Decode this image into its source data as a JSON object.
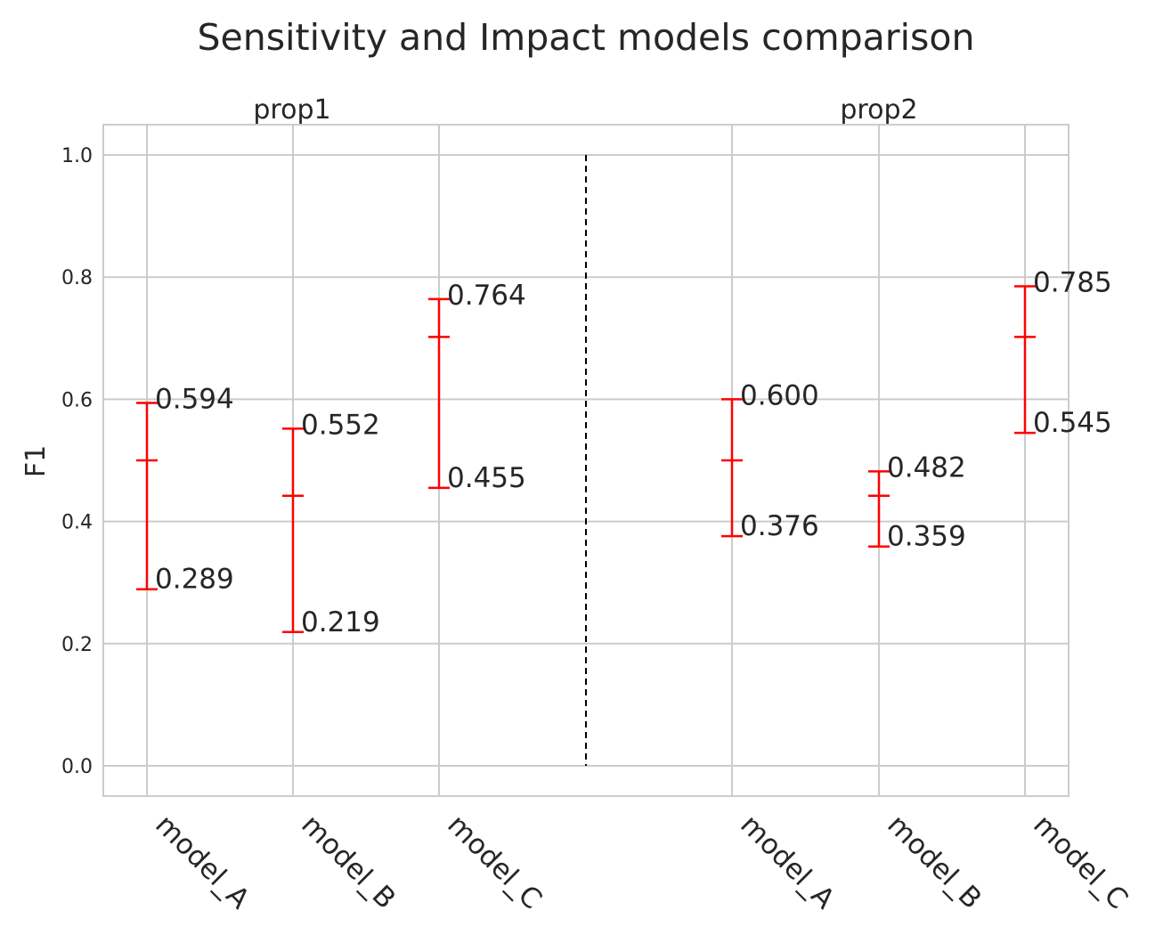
{
  "chart_data": {
    "type": "errorbar",
    "title": "Sensitivity and Impact models comparison",
    "ylabel": "F1",
    "xlabel": "",
    "ylim": [
      -0.05,
      1.05
    ],
    "yticks": [
      "0.0",
      "0.2",
      "0.4",
      "0.6",
      "0.8",
      "1.0"
    ],
    "grid": true,
    "error_color": "#ff0000",
    "divider_color": "#000000",
    "groups": [
      {
        "name": "prop1",
        "models": [
          {
            "label": "model_A",
            "lower": 0.289,
            "mid": 0.5,
            "upper": 0.594,
            "lower_label": "0.289",
            "upper_label": "0.594"
          },
          {
            "label": "model_B",
            "lower": 0.219,
            "mid": 0.442,
            "upper": 0.552,
            "lower_label": "0.219",
            "upper_label": "0.552"
          },
          {
            "label": "model_C",
            "lower": 0.455,
            "mid": 0.702,
            "upper": 0.764,
            "lower_label": "0.455",
            "upper_label": "0.764"
          }
        ]
      },
      {
        "name": "prop2",
        "models": [
          {
            "label": "model_A",
            "lower": 0.376,
            "mid": 0.5,
            "upper": 0.6,
            "lower_label": "0.376",
            "upper_label": "0.600"
          },
          {
            "label": "model_B",
            "lower": 0.359,
            "mid": 0.442,
            "upper": 0.482,
            "lower_label": "0.359",
            "upper_label": "0.482"
          },
          {
            "label": "model_C",
            "lower": 0.545,
            "mid": 0.702,
            "upper": 0.785,
            "lower_label": "0.545",
            "upper_label": "0.785"
          }
        ]
      }
    ]
  }
}
